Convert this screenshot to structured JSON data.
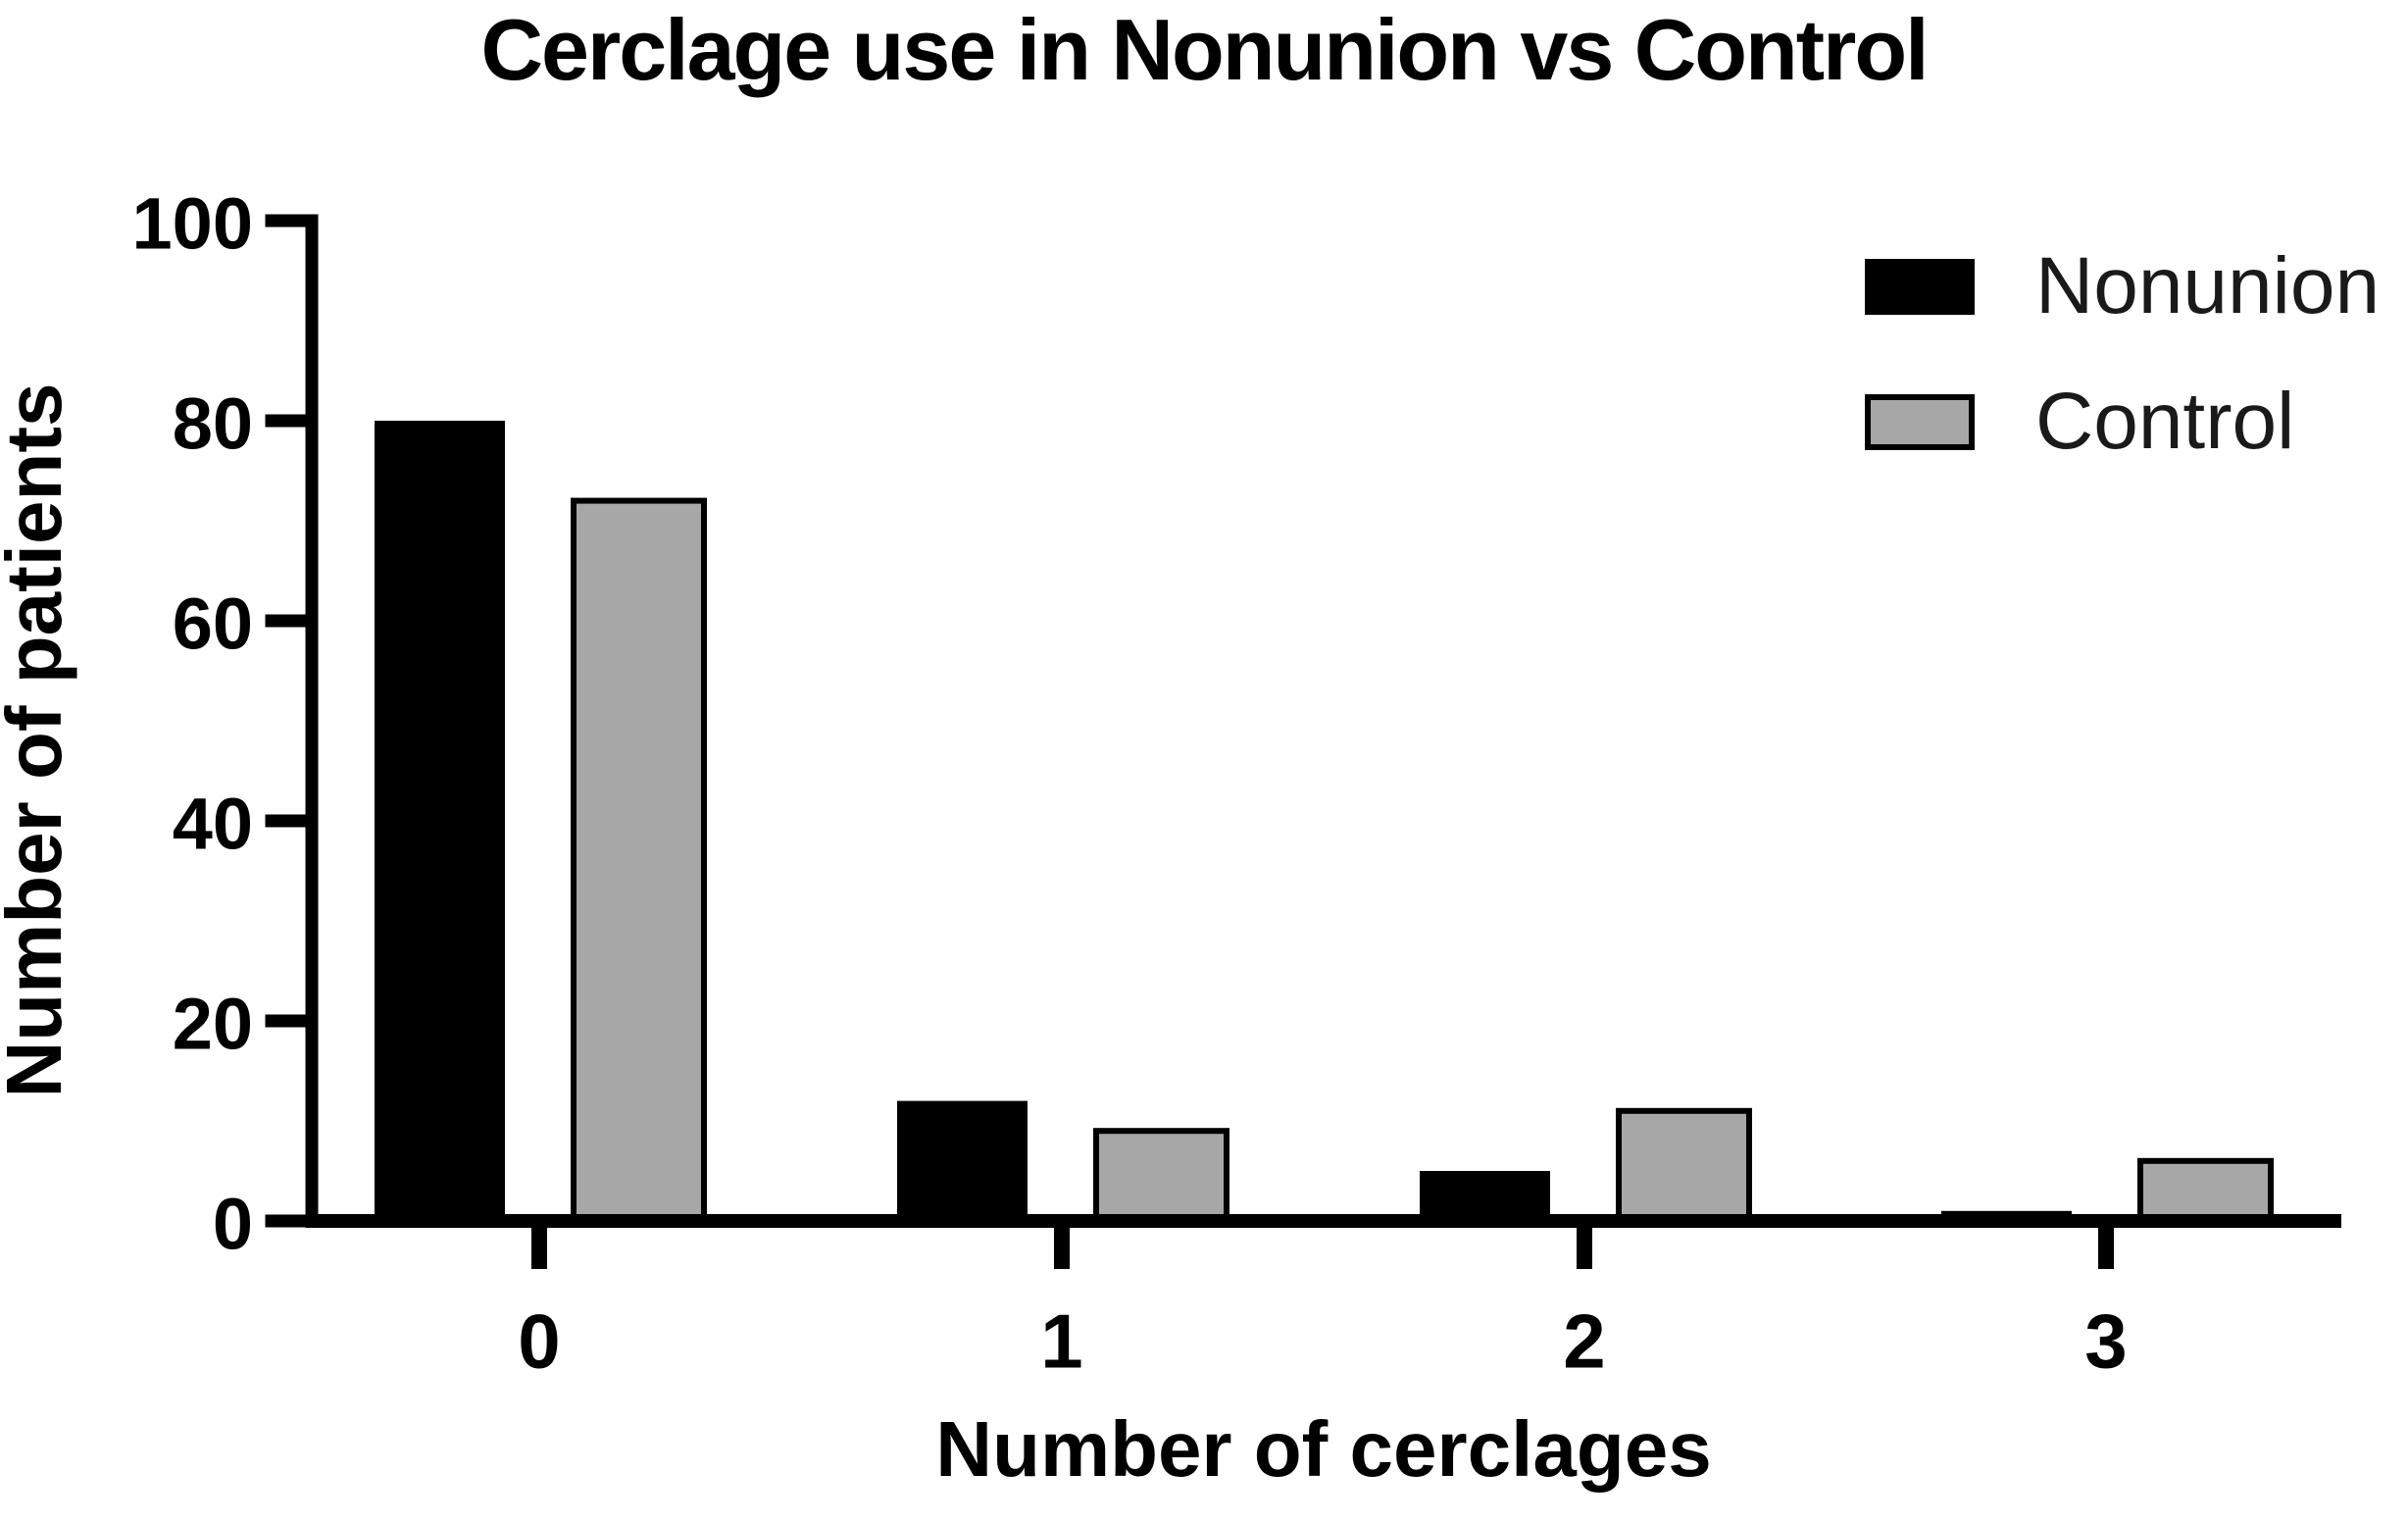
{
  "title": "Cerclage use in Nonunion vs Control",
  "colors": {
    "background": "#FFFFFF",
    "axis": "#000000",
    "nonunion_fill": "#000000",
    "control_fill": "#A7A7A7",
    "bar_outline": "#000000",
    "text": "#000000"
  },
  "chart_data": {
    "type": "bar",
    "title": "Cerclage use in Nonunion vs Control",
    "xlabel": "Number of cerclages",
    "ylabel": "Number of patients",
    "categories": [
      "0",
      "1",
      "2",
      "3"
    ],
    "series": [
      {
        "name": "Nonunion",
        "color": "#000000",
        "outline": "#000000",
        "values": [
          80,
          12,
          5,
          1
        ]
      },
      {
        "name": "Control",
        "color": "#A7A7A7",
        "outline": "#000000",
        "values": [
          72,
          9,
          11,
          6
        ]
      }
    ],
    "ylim": [
      0,
      100
    ],
    "yticks": [
      "0",
      "20",
      "40",
      "60",
      "80",
      "100"
    ],
    "grid": false,
    "legend_position": "top-right"
  }
}
